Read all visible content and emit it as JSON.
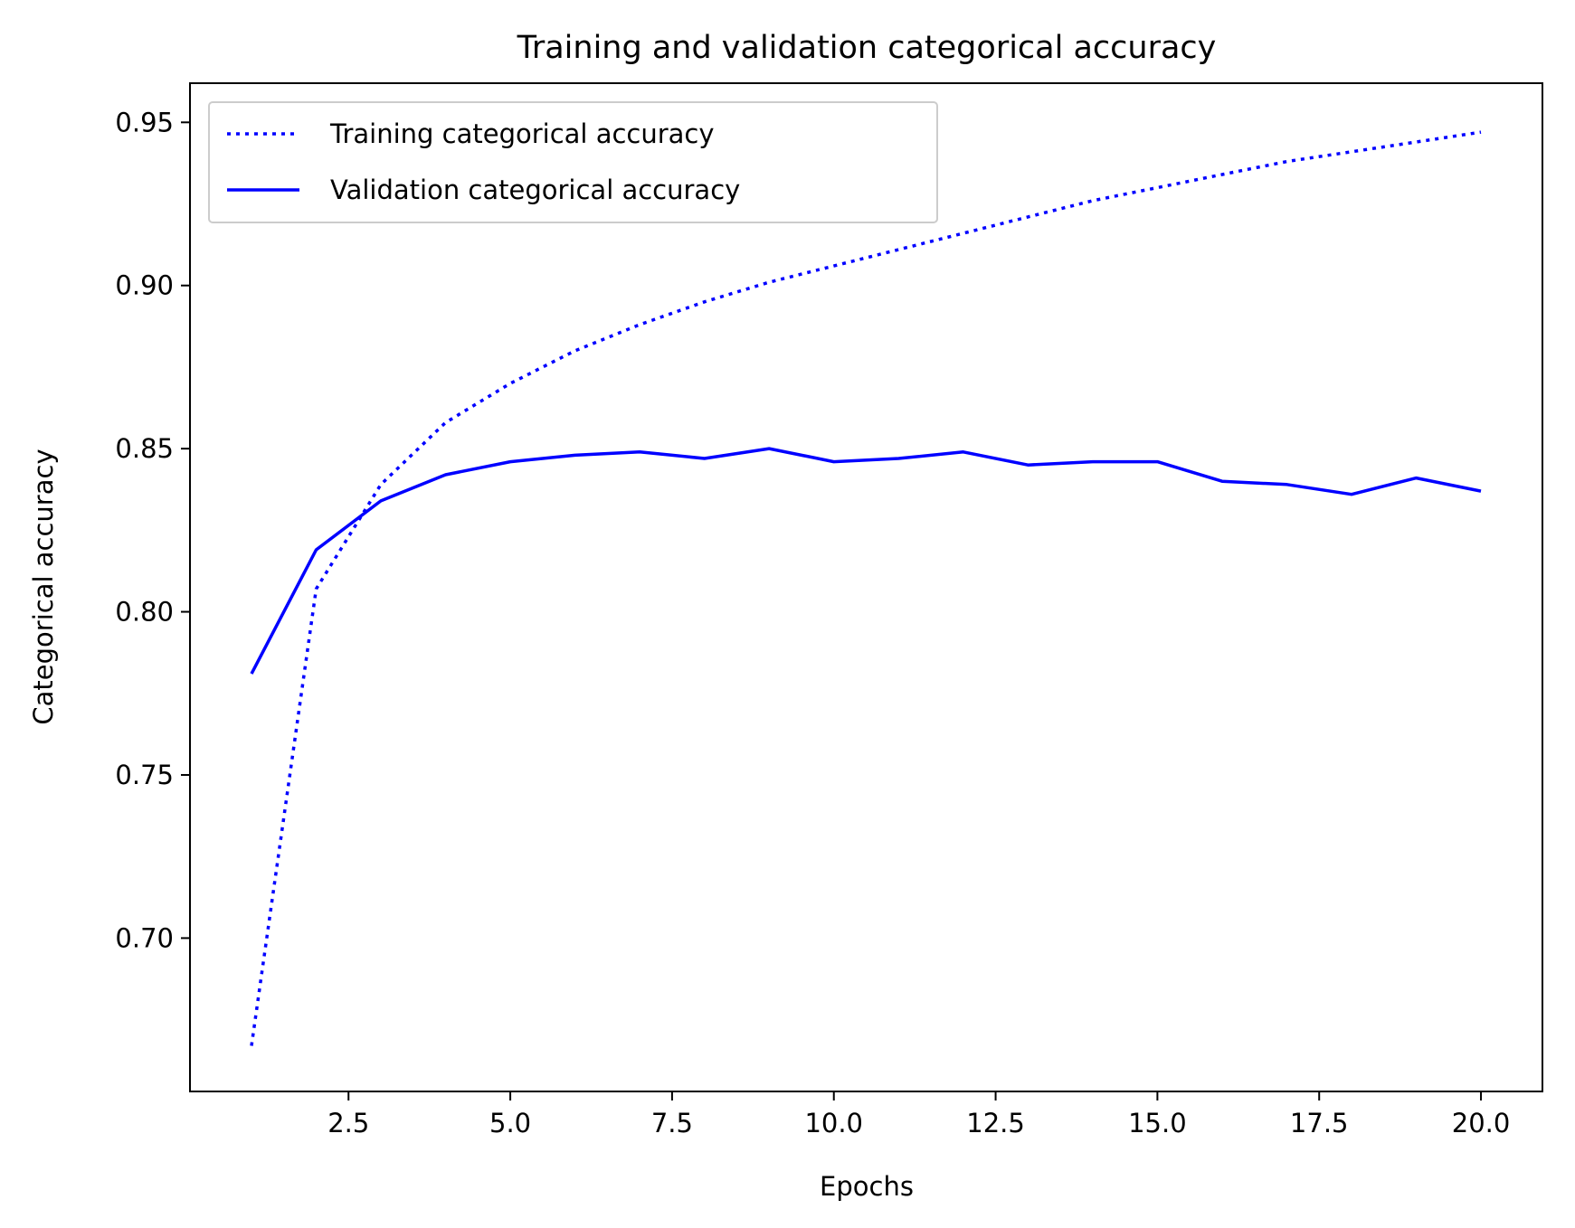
{
  "chart_data": {
    "type": "line",
    "title": "Training and validation categorical accuracy",
    "xlabel": "Epochs",
    "ylabel": "Categorical accuracy",
    "xlim": [
      0.05,
      20.95
    ],
    "ylim": [
      0.653,
      0.962
    ],
    "xticks": [
      2.5,
      5.0,
      7.5,
      10.0,
      12.5,
      15.0,
      17.5,
      20.0
    ],
    "xtick_labels": [
      "2.5",
      "5.0",
      "7.5",
      "10.0",
      "12.5",
      "15.0",
      "17.5",
      "20.0"
    ],
    "yticks": [
      0.7,
      0.75,
      0.8,
      0.85,
      0.9,
      0.95
    ],
    "ytick_labels": [
      "0.70",
      "0.75",
      "0.80",
      "0.85",
      "0.90",
      "0.95"
    ],
    "grid": false,
    "legend_position": "top-left",
    "x": [
      1,
      2,
      3,
      4,
      5,
      6,
      7,
      8,
      9,
      10,
      11,
      12,
      13,
      14,
      15,
      16,
      17,
      18,
      19,
      20
    ],
    "series": [
      {
        "name": "Training categorical accuracy",
        "style": "dotted",
        "color": "#0000ff",
        "values": [
          0.667,
          0.807,
          0.839,
          0.858,
          0.87,
          0.88,
          0.888,
          0.895,
          0.901,
          0.906,
          0.911,
          0.916,
          0.921,
          0.926,
          0.93,
          0.934,
          0.938,
          0.941,
          0.944,
          0.947
        ]
      },
      {
        "name": "Validation categorical accuracy",
        "style": "solid",
        "color": "#0000ff",
        "values": [
          0.781,
          0.819,
          0.834,
          0.842,
          0.846,
          0.848,
          0.849,
          0.847,
          0.85,
          0.846,
          0.847,
          0.849,
          0.845,
          0.846,
          0.846,
          0.84,
          0.839,
          0.836,
          0.841,
          0.837
        ]
      }
    ]
  }
}
